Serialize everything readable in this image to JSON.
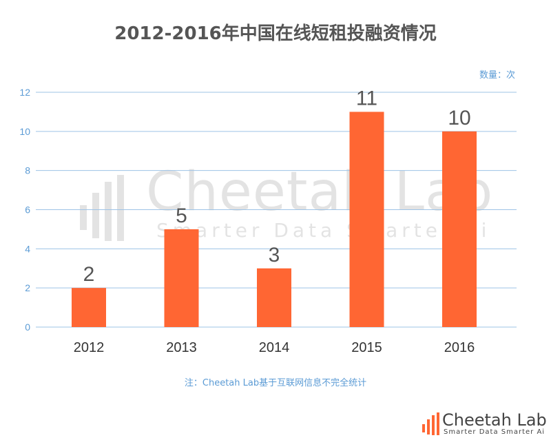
{
  "chart_data": {
    "type": "bar",
    "title": "2012-2016年中国在线短租投融资情况",
    "unit_label": "数量：次",
    "categories": [
      "2012",
      "2013",
      "2014",
      "2015",
      "2016"
    ],
    "values": [
      2,
      5,
      3,
      11,
      10
    ],
    "yticks": [
      0,
      2,
      4,
      6,
      8,
      10,
      12
    ],
    "ylim": [
      0,
      12
    ],
    "grid": true,
    "bar_color": "#ff6633",
    "grid_color": "#9dc3e6",
    "tick_color": "#5b9bd5"
  },
  "footnote": "注：Cheetah Lab基于互联网信息不完全统计",
  "watermark": {
    "text": "Cheetah Lab",
    "subtext": "Smarter Data Smarter Ai"
  },
  "brand": {
    "name": "Cheetah Lab",
    "tagline": "Smarter Data Smarter Ai",
    "color": "#ff6633"
  }
}
